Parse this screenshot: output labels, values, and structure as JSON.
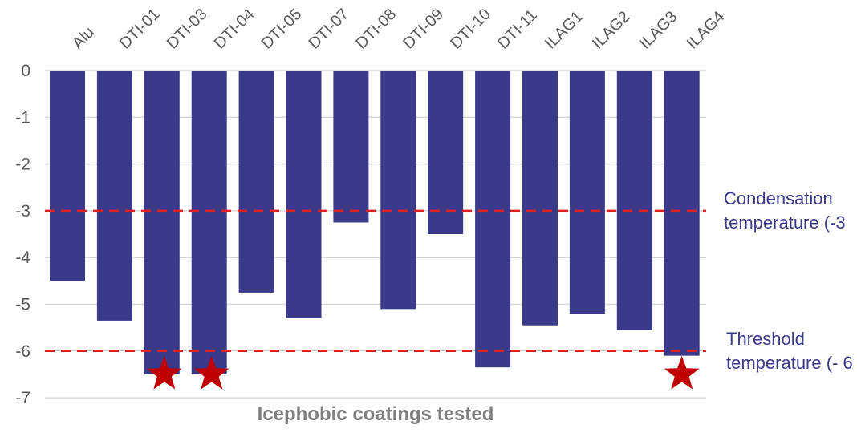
{
  "chart_data": {
    "type": "bar",
    "categories": [
      "Alu",
      "DTI-01",
      "DTI-03",
      "DTI-04",
      "DTI-05",
      "DTI-07",
      "DTI-08",
      "DTI-09",
      "DTI-10",
      "DTI-11",
      "ILAG1",
      "ILAG2",
      "ILAG3",
      "ILAG4"
    ],
    "values": [
      -4.5,
      -5.35,
      -6.5,
      -6.5,
      -4.75,
      -5.3,
      -3.25,
      -5.1,
      -3.5,
      -6.35,
      -5.45,
      -5.2,
      -5.55,
      -6.1
    ],
    "highlighted": [
      "DTI-03",
      "DTI-04",
      "ILAG4"
    ],
    "title": "",
    "xlabel": "Icephobic coatings tested",
    "ylabel": "",
    "ylim": [
      -7,
      0
    ],
    "yticks": [
      0,
      -1,
      -2,
      -3,
      -4,
      -5,
      -6,
      -7
    ],
    "grid": true,
    "bar_color": "#3b3a8a",
    "reference_lines": [
      {
        "value": -3,
        "label_line1": "Condensation",
        "label_line2": "temperature (-3"
      },
      {
        "value": -6,
        "label_line1": "Threshold",
        "label_line2": "temperature (- 6"
      }
    ],
    "reference_line_color": "#e02020",
    "marker": {
      "shape": "star",
      "color": "#c00000"
    }
  }
}
